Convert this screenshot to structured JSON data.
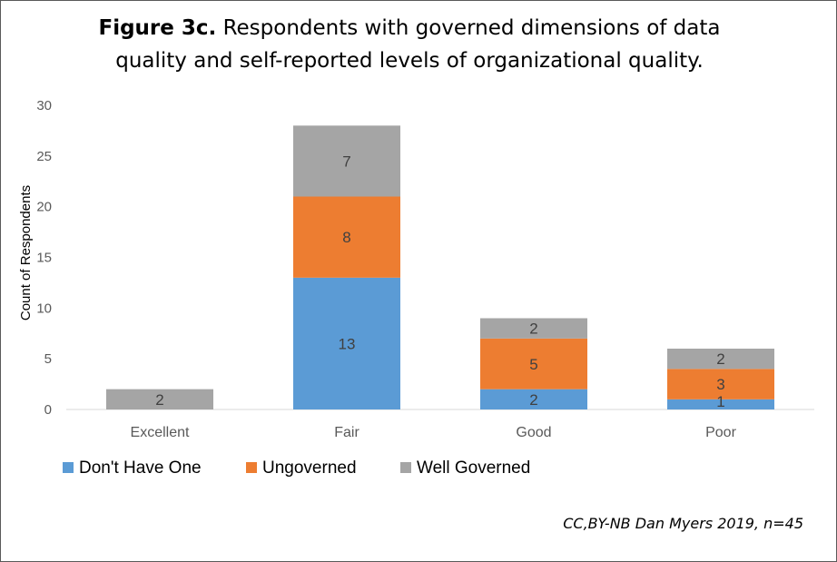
{
  "chart_data": {
    "type": "bar",
    "stacked": true,
    "title_bold": "Figure 3c.",
    "title_rest": "Respondents with governed dimensions of data quality and self-reported levels of organizational quality.",
    "ylabel": "Count of Respondents",
    "xlabel": "",
    "ylim": [
      0,
      30
    ],
    "yticks": [
      0,
      5,
      10,
      15,
      20,
      25,
      30
    ],
    "grid": false,
    "legend_position": "bottom-left",
    "categories": [
      "Excellent",
      "Fair",
      "Good",
      "Poor"
    ],
    "series": [
      {
        "name": "Don't Have One",
        "color": "#5b9bd5",
        "values": [
          0,
          13,
          2,
          1
        ]
      },
      {
        "name": "Ungoverned",
        "color": "#ed7d31",
        "values": [
          0,
          8,
          5,
          3
        ]
      },
      {
        "name": "Well Governed",
        "color": "#a5a5a5",
        "values": [
          2,
          7,
          2,
          2
        ]
      }
    ]
  },
  "credit": "CC,BY-NB Dan Myers 2019, n=45"
}
